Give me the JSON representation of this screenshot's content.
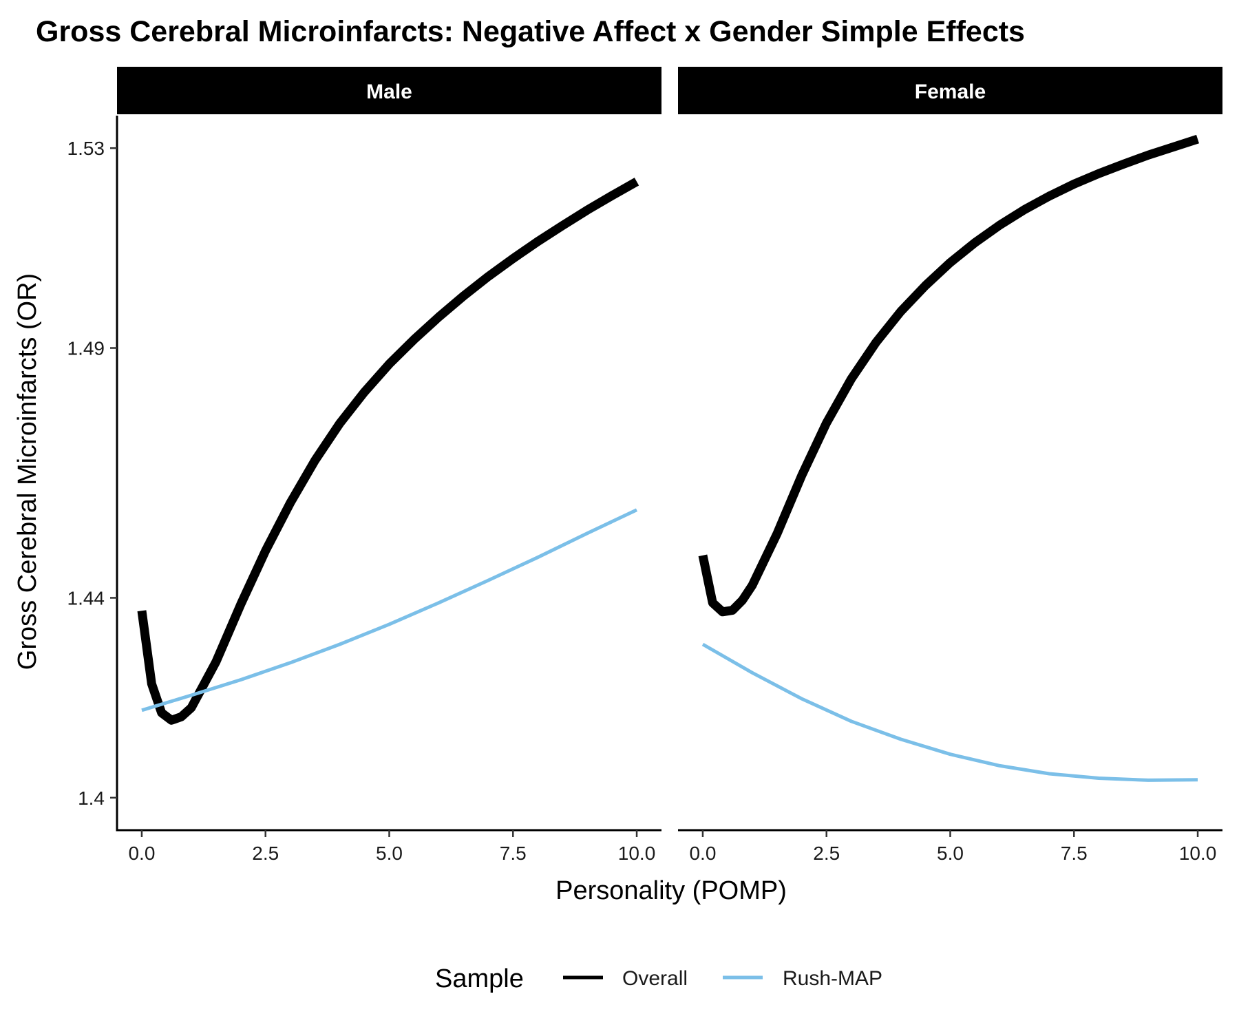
{
  "chart_data": {
    "type": "line",
    "title": "Gross Cerebral Microinfarcts: Negative Affect x Gender Simple Effects",
    "xlabel": "Personality (POMP)",
    "ylabel": "Gross Cerebral Microinfarcts (OR)",
    "xlim": [
      -0.5,
      10.5
    ],
    "ylim": [
      1.3935,
      1.5365
    ],
    "x_ticks": [
      0,
      2.5,
      5,
      7.5,
      10
    ],
    "x_tick_labels": [
      "0.0",
      "2.5",
      "5.0",
      "7.5",
      "10.0"
    ],
    "y_ticks": [
      1.4,
      1.44,
      1.49,
      1.53
    ],
    "y_tick_labels": [
      "1.4",
      "1.44",
      "1.49",
      "1.53"
    ],
    "grid": false,
    "legend": {
      "title": "Sample",
      "position": "bottom",
      "entries": [
        {
          "name": "Overall",
          "color": "#000000"
        },
        {
          "name": "Rush-MAP",
          "color": "#7bbfe8"
        }
      ]
    },
    "panels": [
      {
        "label": "Male",
        "series": [
          {
            "name": "Overall",
            "color": "#000000",
            "x": [
              0,
              0.2,
              0.4,
              0.6,
              0.8,
              1.0,
              1.5,
              2.0,
              2.5,
              3.0,
              3.5,
              4.0,
              4.5,
              5.0,
              5.5,
              6.0,
              6.5,
              7.0,
              7.5,
              8.0,
              8.5,
              9.0,
              9.5,
              10.0
            ],
            "y": [
              1.4374,
              1.4228,
              1.417,
              1.4155,
              1.4162,
              1.418,
              1.4272,
              1.4387,
              1.4494,
              1.459,
              1.4675,
              1.4749,
              1.4812,
              1.4868,
              1.4917,
              1.4962,
              1.5004,
              1.5043,
              1.5079,
              1.5113,
              1.5145,
              1.5176,
              1.5205,
              1.5233
            ]
          },
          {
            "name": "Rush-MAP",
            "color": "#7bbfe8",
            "x": [
              0,
              1,
              2,
              3,
              4,
              5,
              6,
              7,
              8,
              9,
              10
            ],
            "y": [
              1.4175,
              1.4205,
              1.4236,
              1.427,
              1.4307,
              1.4347,
              1.439,
              1.4435,
              1.4481,
              1.4529,
              1.4576
            ]
          }
        ]
      },
      {
        "label": "Female",
        "series": [
          {
            "name": "Overall",
            "color": "#000000",
            "x": [
              0,
              0.2,
              0.4,
              0.6,
              0.8,
              1.0,
              1.5,
              2.0,
              2.5,
              3.0,
              3.5,
              4.0,
              4.5,
              5.0,
              5.5,
              6.0,
              6.5,
              7.0,
              7.5,
              8.0,
              8.5,
              9.0,
              9.5,
              10.0
            ],
            "y": [
              1.4485,
              1.439,
              1.4372,
              1.4375,
              1.4395,
              1.4425,
              1.4528,
              1.4645,
              1.475,
              1.4838,
              1.4911,
              1.4973,
              1.5025,
              1.5071,
              1.5111,
              1.5146,
              1.5177,
              1.5204,
              1.5228,
              1.5249,
              1.5268,
              1.5286,
              1.5302,
              1.5318
            ]
          },
          {
            "name": "Rush-MAP",
            "color": "#7bbfe8",
            "x": [
              0,
              1,
              2,
              3,
              4,
              5,
              6,
              7,
              8,
              9,
              10
            ],
            "y": [
              1.4307,
              1.425,
              1.4198,
              1.4153,
              1.4117,
              1.4087,
              1.4064,
              1.4048,
              1.4039,
              1.4035,
              1.4036
            ]
          }
        ]
      }
    ]
  }
}
